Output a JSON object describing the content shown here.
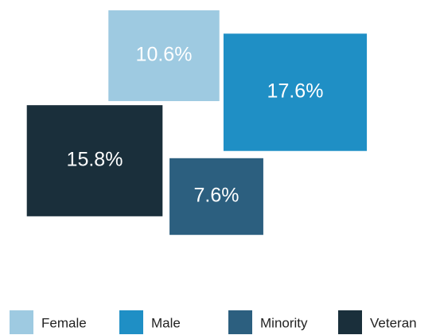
{
  "chart_data": {
    "type": "area-squares",
    "categories": [
      "Female",
      "Male",
      "Minority",
      "Veteran"
    ],
    "values": [
      10.6,
      17.6,
      7.6,
      15.8
    ],
    "value_labels": [
      "10.6%",
      "17.6%",
      "7.6%",
      "15.8%"
    ],
    "colors": [
      "#9ecae1",
      "#1f8fc5",
      "#2c5f7f",
      "#1a2f3b"
    ],
    "legend": "bottom"
  }
}
